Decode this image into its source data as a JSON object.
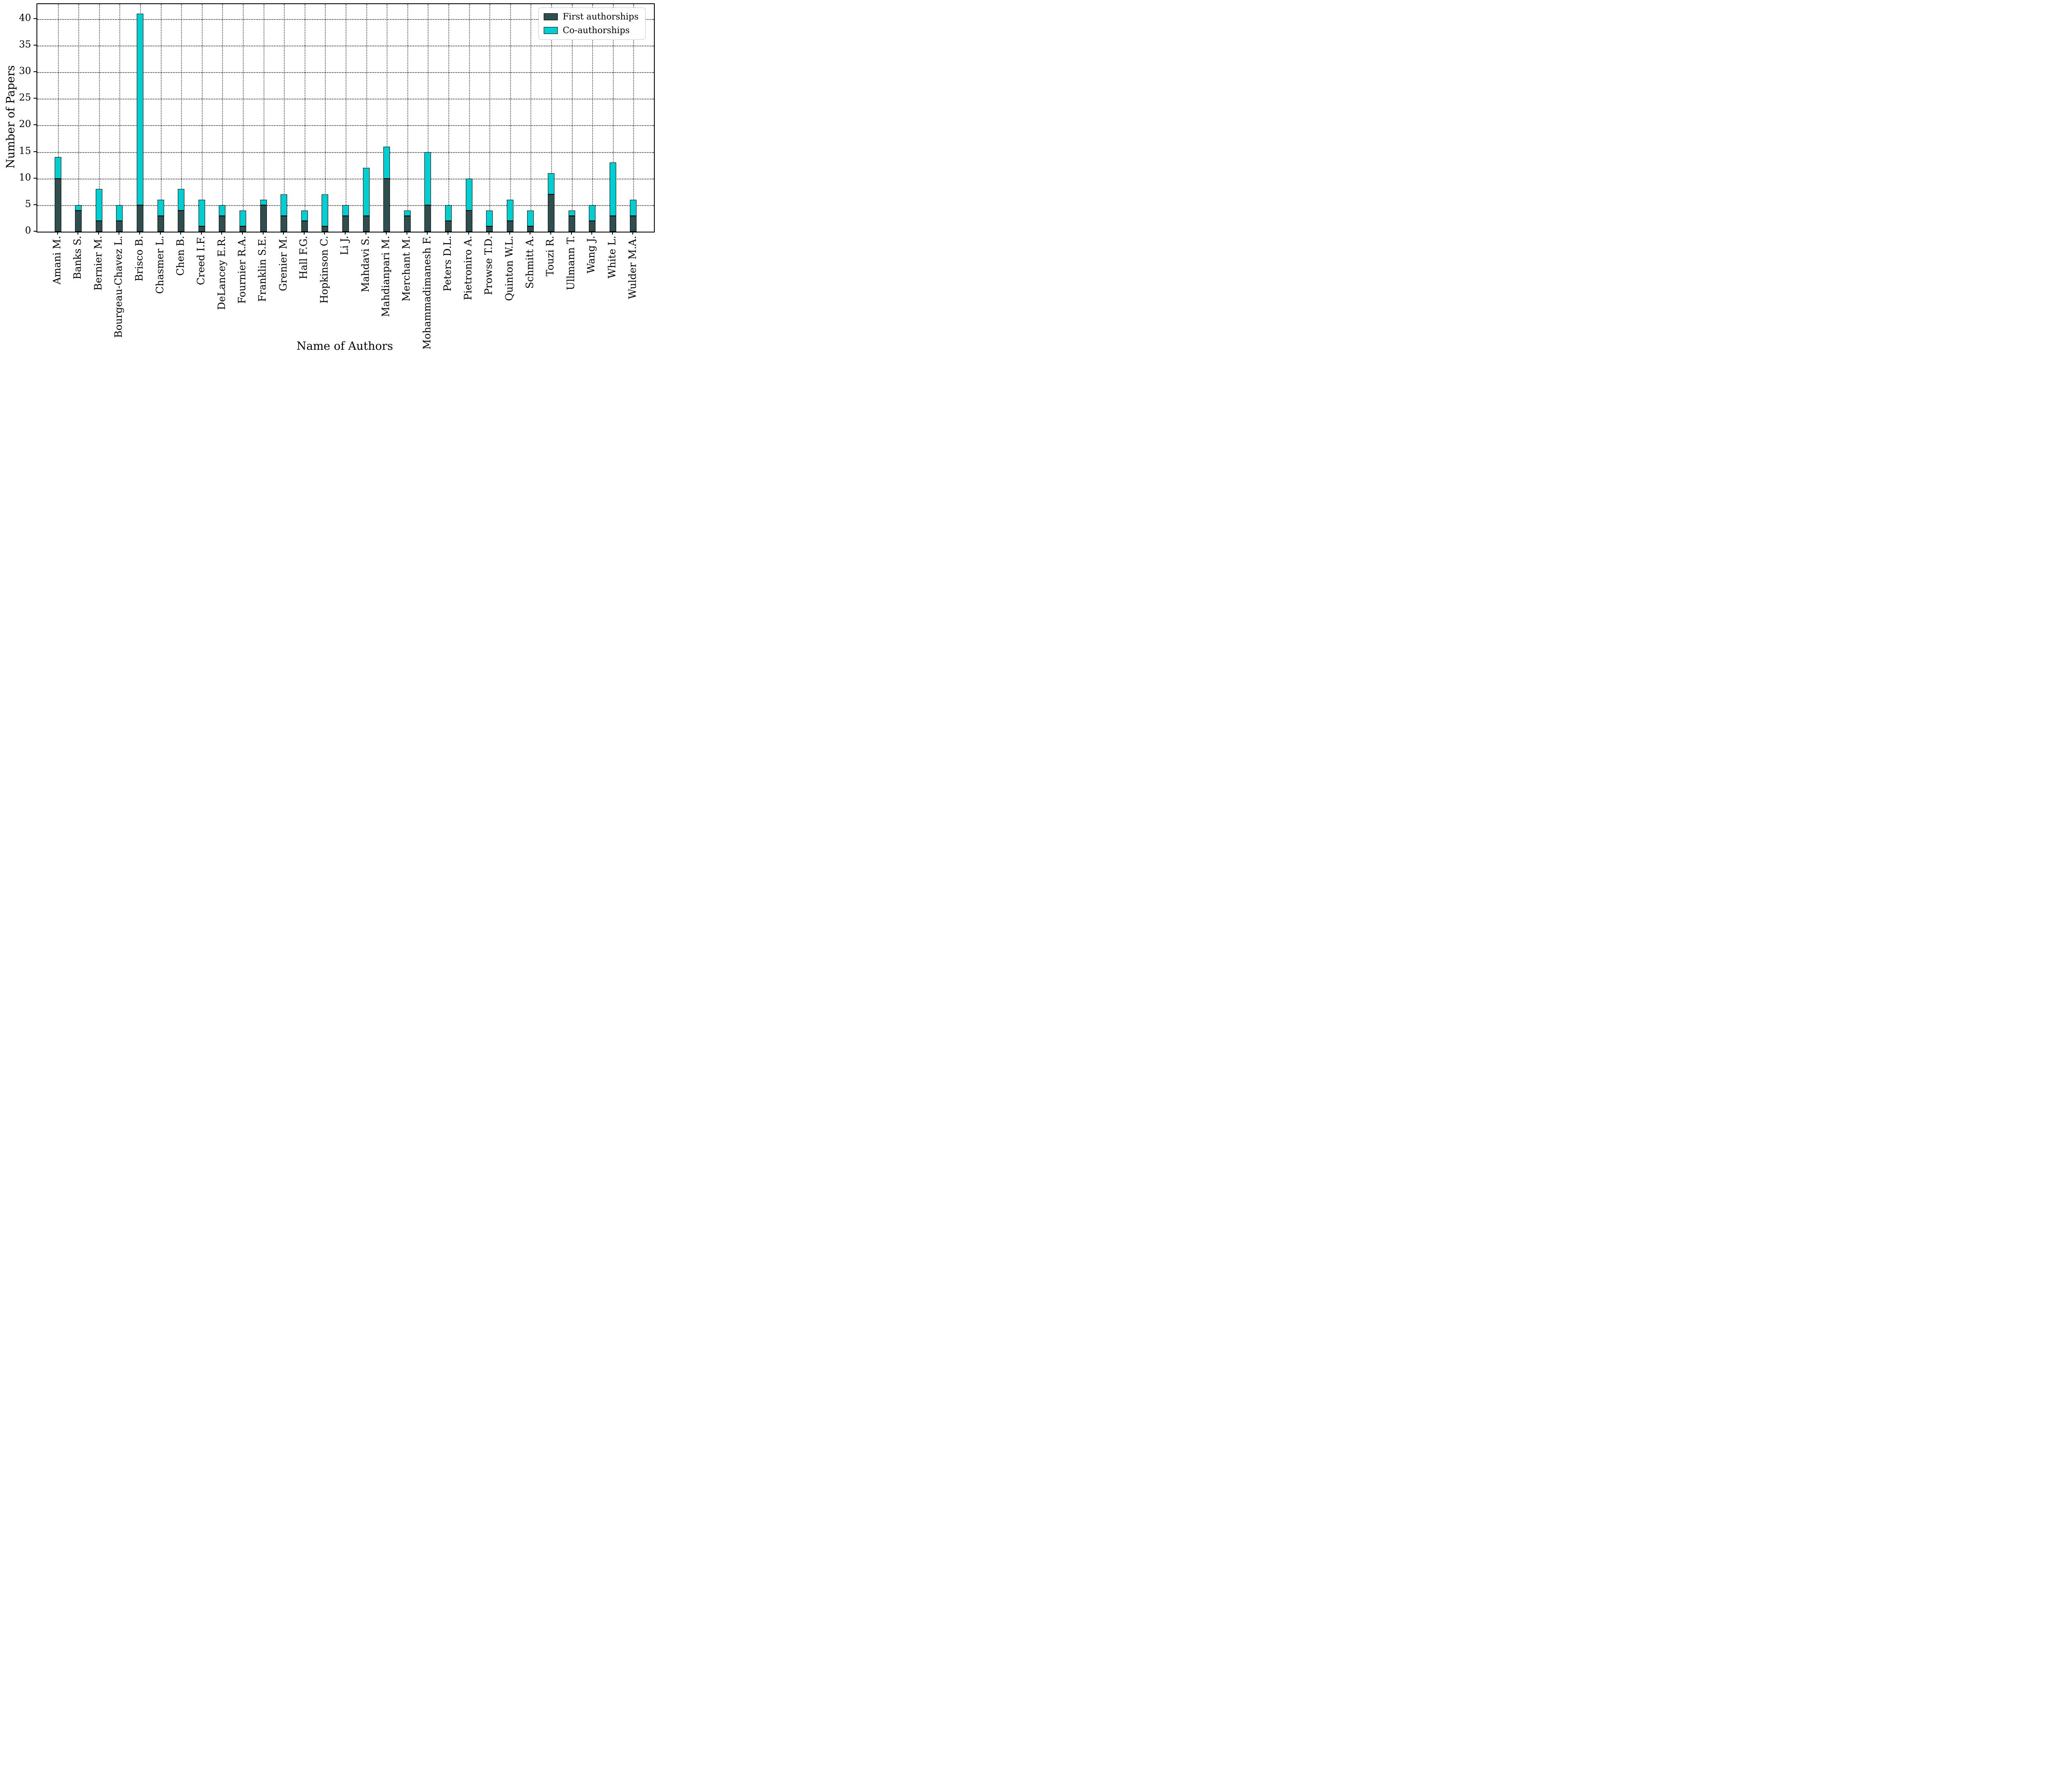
{
  "chart_data": {
    "type": "bar",
    "stacked": true,
    "title": "",
    "xlabel": "Name of Authors",
    "ylabel": "Number of  Papers",
    "ylim": [
      0,
      42.8
    ],
    "yticks": [
      0,
      5,
      10,
      15,
      20,
      25,
      30,
      35,
      40
    ],
    "grid": "dotted",
    "legend_position": "upper right",
    "categories": [
      "Amani M.",
      "Banks S.",
      "Bernier M.",
      "Bourgeau-Chavez L.",
      "Brisco B.",
      "Chasmer L.",
      "Chen B.",
      "Creed I.F.",
      "DeLancey E.R.",
      "Fournier R.A.",
      "Franklin S.E.",
      "Grenier M.",
      "Hall F.G.",
      "Hopkinson C.",
      "Li J.",
      "Mahdavi S.",
      "Mahdianpari M.",
      "Merchant M.",
      "Mohammadimanesh F.",
      "Peters D.L.",
      "Pietroniro A.",
      "Prowse T.D.",
      "Quinton W.L.",
      "Schmitt A.",
      "Touzi R.",
      "Ullmann T.",
      "Wang J.",
      "White L.",
      "Wulder M.A."
    ],
    "series": [
      {
        "name": "First authorships",
        "color": "#2F4F4F",
        "values": [
          10,
          4,
          2,
          2,
          5,
          3,
          4,
          1,
          3,
          1,
          5,
          3,
          2,
          1,
          3,
          3,
          10,
          3,
          5,
          2,
          4,
          1,
          2,
          1,
          7,
          3,
          2,
          3,
          3
        ]
      },
      {
        "name": "Co-authorships",
        "color": "#00CED1",
        "values": [
          4,
          1,
          6,
          3,
          36,
          3,
          4,
          5,
          2,
          3,
          1,
          4,
          2,
          6,
          2,
          9,
          6,
          1,
          10,
          3,
          6,
          3,
          4,
          3,
          4,
          1,
          3,
          10,
          3
        ]
      }
    ],
    "totals": [
      14,
      5,
      8,
      5,
      41,
      6,
      8,
      6,
      5,
      4,
      6,
      7,
      4,
      7,
      5,
      12,
      16,
      4,
      15,
      5,
      10,
      4,
      6,
      4,
      11,
      4,
      5,
      13,
      6
    ]
  }
}
